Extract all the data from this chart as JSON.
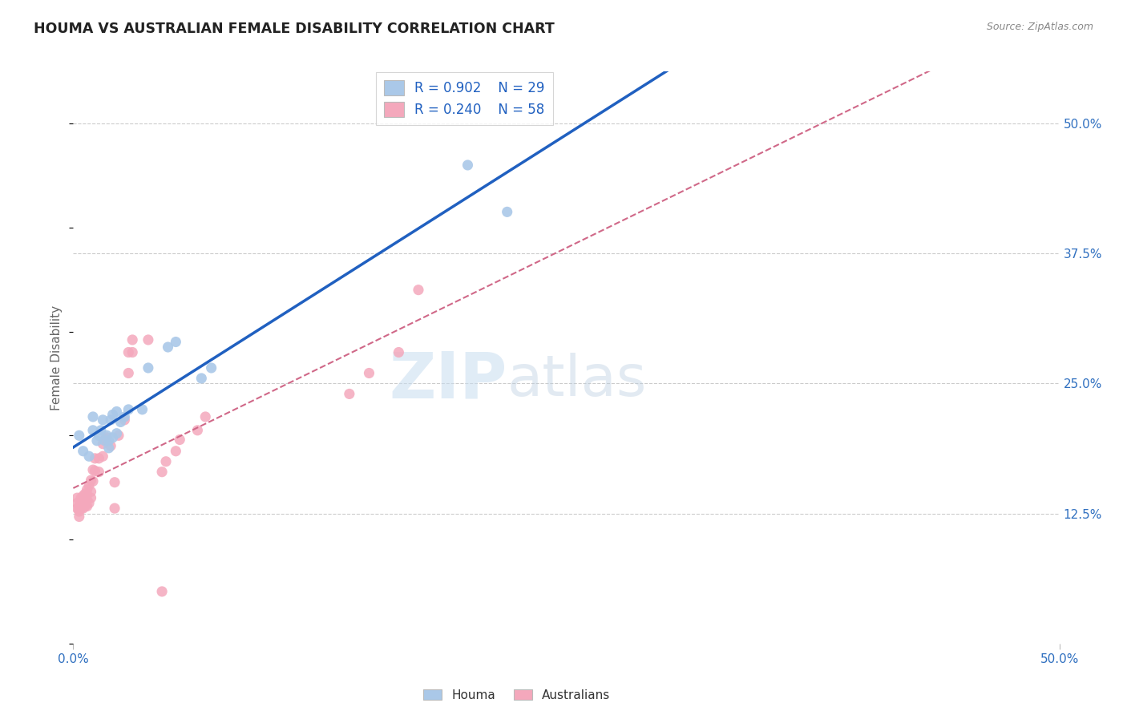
{
  "title": "HOUMA VS AUSTRALIAN FEMALE DISABILITY CORRELATION CHART",
  "source": "Source: ZipAtlas.com",
  "ylabel": "Female Disability",
  "xlim": [
    0.0,
    0.5
  ],
  "ylim": [
    0.0,
    0.55
  ],
  "xtick_positions": [
    0.0,
    0.5
  ],
  "xtick_labels": [
    "0.0%",
    "50.0%"
  ],
  "ytick_positions": [
    0.125,
    0.25,
    0.375,
    0.5
  ],
  "ytick_labels": [
    "12.5%",
    "25.0%",
    "37.5%",
    "50.0%"
  ],
  "houma_R": 0.902,
  "houma_N": 29,
  "australians_R": 0.24,
  "australians_N": 58,
  "houma_color": "#aac8e8",
  "australians_color": "#f4a8bc",
  "houma_line_color": "#2060c0",
  "australians_line_color": "#d06888",
  "watermark_text": "ZIP",
  "watermark_text2": "atlas",
  "houma_x": [
    0.003,
    0.005,
    0.008,
    0.01,
    0.01,
    0.012,
    0.013,
    0.014,
    0.015,
    0.016,
    0.017,
    0.018,
    0.018,
    0.019,
    0.02,
    0.02,
    0.022,
    0.022,
    0.024,
    0.026,
    0.028,
    0.035,
    0.038,
    0.048,
    0.052,
    0.065,
    0.07,
    0.2,
    0.22
  ],
  "houma_y": [
    0.2,
    0.185,
    0.18,
    0.205,
    0.218,
    0.195,
    0.2,
    0.205,
    0.215,
    0.195,
    0.2,
    0.188,
    0.195,
    0.215,
    0.198,
    0.22,
    0.202,
    0.223,
    0.213,
    0.218,
    0.225,
    0.225,
    0.265,
    0.285,
    0.29,
    0.255,
    0.265,
    0.46,
    0.415
  ],
  "australians_x": [
    0.002,
    0.002,
    0.002,
    0.003,
    0.003,
    0.003,
    0.003,
    0.004,
    0.004,
    0.004,
    0.005,
    0.005,
    0.005,
    0.005,
    0.006,
    0.006,
    0.006,
    0.006,
    0.007,
    0.007,
    0.007,
    0.007,
    0.008,
    0.008,
    0.009,
    0.009,
    0.009,
    0.01,
    0.01,
    0.011,
    0.011,
    0.013,
    0.013,
    0.015,
    0.015,
    0.016,
    0.017,
    0.019,
    0.021,
    0.021,
    0.023,
    0.026,
    0.028,
    0.028,
    0.03,
    0.03,
    0.038,
    0.045,
    0.045,
    0.047,
    0.052,
    0.054,
    0.063,
    0.067,
    0.14,
    0.15,
    0.165,
    0.175
  ],
  "australians_y": [
    0.13,
    0.135,
    0.14,
    0.122,
    0.127,
    0.13,
    0.132,
    0.13,
    0.133,
    0.14,
    0.13,
    0.133,
    0.137,
    0.142,
    0.132,
    0.138,
    0.14,
    0.144,
    0.132,
    0.138,
    0.143,
    0.148,
    0.135,
    0.152,
    0.14,
    0.146,
    0.157,
    0.156,
    0.167,
    0.166,
    0.178,
    0.165,
    0.178,
    0.18,
    0.192,
    0.196,
    0.198,
    0.19,
    0.13,
    0.155,
    0.2,
    0.215,
    0.26,
    0.28,
    0.28,
    0.292,
    0.292,
    0.05,
    0.165,
    0.175,
    0.185,
    0.196,
    0.205,
    0.218,
    0.24,
    0.26,
    0.28,
    0.34
  ]
}
